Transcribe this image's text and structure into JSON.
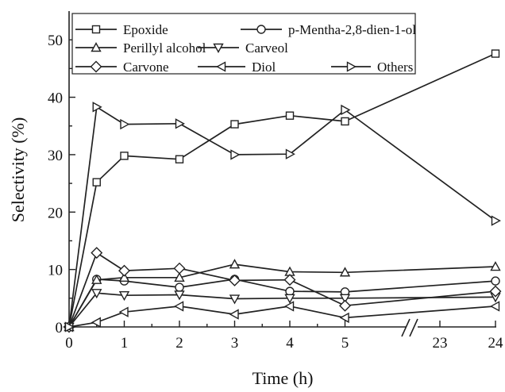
{
  "chart_data": {
    "type": "line",
    "xlabel": "Time (h)",
    "ylabel": "Selectivity (%)",
    "x": [
      0,
      0.5,
      1,
      2,
      3,
      4,
      5,
      24
    ],
    "x_ticks": [
      "0",
      "1",
      "2",
      "3",
      "4",
      "5",
      "23",
      "24"
    ],
    "y_ticks": [
      "0",
      "10",
      "20",
      "30",
      "40",
      "50"
    ],
    "ylim": [
      0,
      55
    ],
    "axis_break": "between 5 and 23 h",
    "grid": false,
    "legend_position": "top",
    "series": [
      {
        "name": "Epoxide",
        "marker": "square",
        "values": [
          0,
          25.2,
          29.8,
          29.2,
          35.3,
          36.8,
          35.8,
          47.6
        ]
      },
      {
        "name": "p-Mentha-2,8-dien-1-ol",
        "marker": "circle",
        "values": [
          0,
          8.3,
          8.0,
          6.9,
          8.3,
          6.2,
          6.1,
          8.0
        ]
      },
      {
        "name": "Perillyl alcohol",
        "marker": "triangle-up",
        "values": [
          0,
          8.2,
          8.6,
          8.6,
          10.9,
          9.6,
          9.5,
          10.5
        ]
      },
      {
        "name": "Carveol",
        "marker": "triangle-down",
        "values": [
          0,
          5.9,
          5.5,
          5.6,
          4.9,
          5.0,
          5.0,
          5.2
        ]
      },
      {
        "name": "Carvone",
        "marker": "diamond",
        "values": [
          0,
          12.9,
          9.8,
          10.2,
          8.1,
          8.2,
          3.7,
          6.2
        ]
      },
      {
        "name": "Diol",
        "marker": "triangle-left",
        "values": [
          0,
          0.8,
          2.6,
          3.6,
          2.2,
          3.6,
          1.6,
          3.6
        ]
      },
      {
        "name": "Others",
        "marker": "triangle-right",
        "values": [
          0,
          38.3,
          35.3,
          35.4,
          30.0,
          30.1,
          37.8,
          18.5
        ]
      }
    ]
  }
}
